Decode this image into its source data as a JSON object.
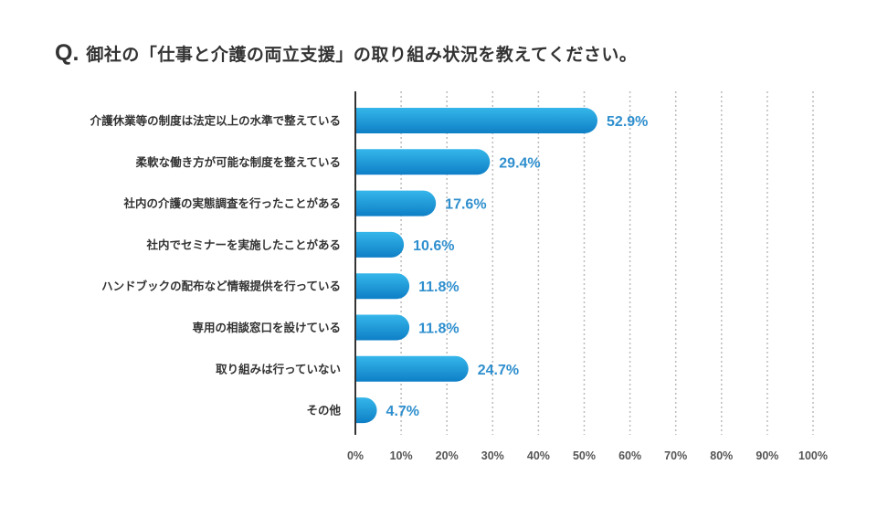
{
  "title": {
    "prefix": "Q.",
    "text": "御社の「仕事と介護の両立支援」の取り組み状況を教えてください。"
  },
  "colors": {
    "bar_top": "#35b6ea",
    "bar_bottom": "#0e7fc6",
    "value_text": "#2f8fce",
    "axis": "#333333",
    "grid": "#bbbbbb"
  },
  "chart_data": {
    "type": "bar",
    "orientation": "horizontal",
    "categories": [
      "介護休業等の制度は法定以上の水準で整えている",
      "柔軟な働き方が可能な制度を整えている",
      "社内の介護の実態調査を行ったことがある",
      "社内でセミナーを実施したことがある",
      "ハンドブックの配布など情報提供を行っている",
      "専用の相談窓口を設けている",
      "取り組みは行っていない",
      "その他"
    ],
    "values": [
      52.9,
      29.4,
      17.6,
      10.6,
      11.8,
      11.8,
      24.7,
      4.7
    ],
    "value_labels": [
      "52.9%",
      "29.4%",
      "17.6%",
      "10.6%",
      "11.8%",
      "11.8%",
      "24.7%",
      "4.7%"
    ],
    "x_ticks": [
      "0%",
      "10%",
      "20%",
      "30%",
      "40%",
      "50%",
      "60%",
      "70%",
      "80%",
      "90%",
      "100%"
    ],
    "xlim": [
      0,
      100
    ],
    "grid": true
  }
}
